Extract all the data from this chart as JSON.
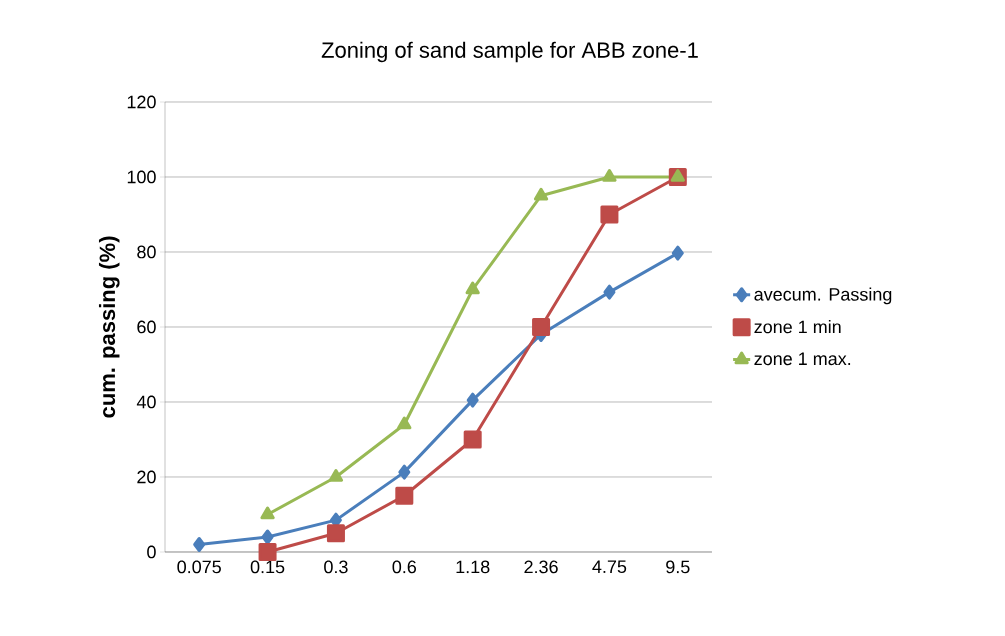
{
  "chart_data": {
    "type": "line",
    "title": "Zoning of sand sample for ABB zone-1",
    "ylabel": "cum. passing (%)",
    "categories": [
      "0.075",
      "0.15",
      "0.3",
      "0.6",
      "1.18",
      "2.36",
      "4.75",
      "9.5"
    ],
    "series": [
      {
        "name": "avecum. Passing",
        "color": "#4a7ebb",
        "marker": "diamond",
        "values": [
          2,
          4,
          8.5,
          21.3,
          40.5,
          58,
          69.3,
          79.7
        ]
      },
      {
        "name": "zone 1 min",
        "color": "#be4b48",
        "marker": "square",
        "values": [
          null,
          0,
          5,
          15,
          30,
          60,
          90,
          100
        ]
      },
      {
        "name": "zone 1 max.",
        "color": "#98b954",
        "marker": "triangle",
        "values": [
          null,
          10,
          20,
          34,
          70,
          95,
          100,
          100
        ]
      }
    ],
    "ylim": [
      0,
      120
    ],
    "yticks": [
      0,
      20,
      40,
      60,
      80,
      100,
      120
    ],
    "grid": "y",
    "legend": "right"
  }
}
